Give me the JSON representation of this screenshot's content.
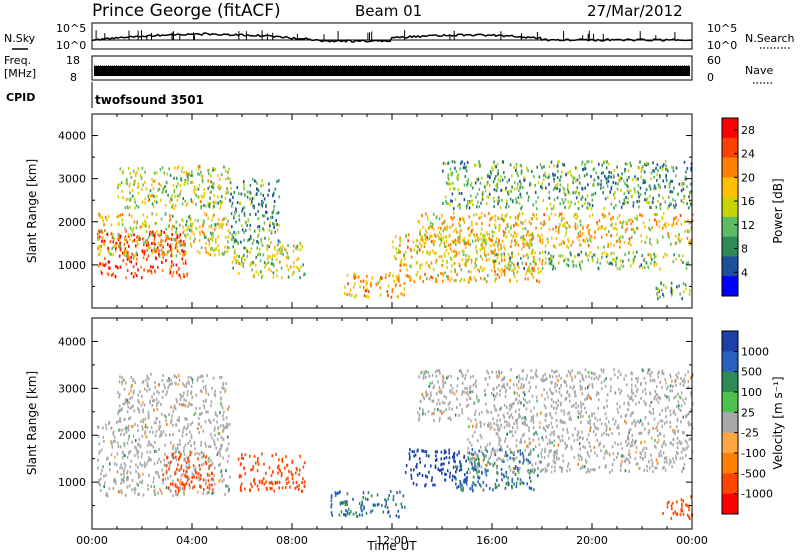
{
  "header": {
    "station": "Prince George (fitACF)",
    "beam": "Beam 01",
    "date": "27/Mar/2012"
  },
  "top_panels": {
    "nsky_label": "N.Sky",
    "nsky_ticks": [
      "10^5",
      "10^0"
    ],
    "nsearch_label": "N.Search",
    "nsearch_ticks": [
      "10^5",
      "10^0"
    ],
    "freq_label_1": "Freq.",
    "freq_label_2": "[MHz]",
    "freq_ticks": [
      "18",
      "8"
    ],
    "nave_label": "Nave",
    "nave_ticks": [
      "60",
      "0"
    ],
    "cpid_label": "CPID",
    "cpid_value": "twofsound 3501"
  },
  "colors": {
    "power_scale": [
      "#0000ff",
      "#1d4f9a",
      "#2e8b57",
      "#5dbb63",
      "#c8d400",
      "#ffc000",
      "#ff8000",
      "#ff4000",
      "#ff0000"
    ],
    "velocity_scale": [
      "#1c3fa8",
      "#2a5fc0",
      "#2e8b57",
      "#4ec24e",
      "#a9a9a9",
      "#ffa640",
      "#ff7f00",
      "#ff4500",
      "#ff0000"
    ]
  },
  "chart_data": [
    {
      "type": "heatmap",
      "title": "",
      "xlabel": "",
      "ylabel": "Slant Range [km]",
      "xlim": [
        "00:00",
        "24:00"
      ],
      "ylim": [
        0,
        4500
      ],
      "y_ticks": [
        "1000",
        "2000",
        "3000",
        "4000"
      ],
      "x_ticks": [
        "00:00",
        "04:00",
        "08:00",
        "12:00",
        "16:00",
        "20:00",
        "00:00"
      ],
      "colorbar_label": "Power [dB]",
      "colorbar_ticks": [
        "4",
        "8",
        "12",
        "16",
        "20",
        "24",
        "28"
      ],
      "scatter_regions": [
        {
          "t0": 0.2,
          "t1": 3.8,
          "r0": 700,
          "r1": 1800,
          "level": 28
        },
        {
          "t0": 0.2,
          "t1": 5.5,
          "r0": 1200,
          "r1": 2200,
          "level": 16
        },
        {
          "t0": 1.0,
          "t1": 5.5,
          "r0": 2300,
          "r1": 3300,
          "level": 14
        },
        {
          "t0": 5.5,
          "t1": 8.5,
          "r0": 700,
          "r1": 1500,
          "level": 14
        },
        {
          "t0": 5.5,
          "t1": 7.5,
          "r0": 1500,
          "r1": 3000,
          "level": 8
        },
        {
          "t0": 10.0,
          "t1": 12.5,
          "r0": 250,
          "r1": 800,
          "level": 20
        },
        {
          "t0": 12.0,
          "t1": 18.0,
          "r0": 600,
          "r1": 1700,
          "level": 18
        },
        {
          "t0": 13.0,
          "t1": 24.0,
          "r0": 1400,
          "r1": 2200,
          "level": 18
        },
        {
          "t0": 16.0,
          "t1": 24.0,
          "r0": 900,
          "r1": 1300,
          "level": 12
        },
        {
          "t0": 14.0,
          "t1": 24.0,
          "r0": 2300,
          "r1": 3400,
          "level": 10
        },
        {
          "t0": 22.5,
          "t1": 24.0,
          "r0": 200,
          "r1": 600,
          "level": 10
        }
      ]
    },
    {
      "type": "heatmap",
      "title": "",
      "xlabel": "Time UT",
      "ylabel": "Slant Range [km]",
      "xlim": [
        "00:00",
        "24:00"
      ],
      "ylim": [
        0,
        4500
      ],
      "y_ticks": [
        "1000",
        "2000",
        "3000",
        "4000"
      ],
      "x_ticks": [
        "00:00",
        "04:00",
        "08:00",
        "12:00",
        "16:00",
        "20:00",
        "00:00"
      ],
      "colorbar_label": "Velocity [m s⁻¹]",
      "colorbar_ticks": [
        "1000",
        "500",
        "100",
        "25",
        "-25",
        "-100",
        "-500",
        "-1000"
      ],
      "scatter_regions": [
        {
          "t0": 0.2,
          "t1": 5.5,
          "r0": 700,
          "r1": 2300,
          "level": 0
        },
        {
          "t0": 1.0,
          "t1": 5.5,
          "r0": 2300,
          "r1": 3300,
          "level": 0
        },
        {
          "t0": 2.8,
          "t1": 4.8,
          "r0": 800,
          "r1": 1600,
          "level": -300
        },
        {
          "t0": 5.8,
          "t1": 8.5,
          "r0": 800,
          "r1": 1600,
          "level": -300
        },
        {
          "t0": 9.5,
          "t1": 12.5,
          "r0": 250,
          "r1": 800,
          "level": 150
        },
        {
          "t0": 12.5,
          "t1": 15.0,
          "r0": 900,
          "r1": 1700,
          "level": 700
        },
        {
          "t0": 14.5,
          "t1": 18.0,
          "r0": 800,
          "r1": 1700,
          "level": 150
        },
        {
          "t0": 15.0,
          "t1": 24.0,
          "r0": 1200,
          "r1": 2300,
          "level": 0
        },
        {
          "t0": 13.0,
          "t1": 24.0,
          "r0": 2300,
          "r1": 3400,
          "level": 0
        },
        {
          "t0": 22.8,
          "t1": 24.0,
          "r0": 200,
          "r1": 700,
          "level": -300
        }
      ]
    }
  ]
}
